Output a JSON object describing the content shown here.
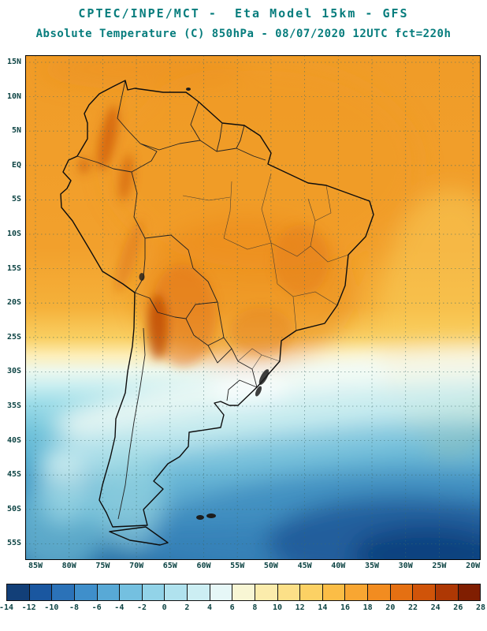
{
  "header": {
    "line1": "CPTEC/INPE/MCT -  Eta Model 15km - GFS",
    "line2": "Absolute Temperature (C) 850hPa - 08/07/2020 12UTC fct=220h"
  },
  "map": {
    "lat_labels": [
      "15N",
      "10N",
      "5N",
      "EQ",
      "5S",
      "10S",
      "15S",
      "20S",
      "25S",
      "30S",
      "35S",
      "40S",
      "45S",
      "50S",
      "55S"
    ],
    "lon_labels": [
      "85W",
      "80W",
      "75W",
      "70W",
      "65W",
      "60W",
      "55W",
      "50W",
      "45W",
      "40W",
      "35W",
      "30W",
      "25W",
      "20W"
    ]
  },
  "colorbar": {
    "tick_labels": [
      "-14",
      "-12",
      "-10",
      "-8",
      "-6",
      "-4",
      "-2",
      "0",
      "2",
      "4",
      "6",
      "8",
      "10",
      "12",
      "14",
      "16",
      "18",
      "20",
      "22",
      "24",
      "26",
      "28"
    ],
    "segment_colors": [
      "#123f78",
      "#1a57a0",
      "#2b72b8",
      "#3f8fcb",
      "#58a9d6",
      "#74c0e0",
      "#92d3e8",
      "#b0e2ee",
      "#cceef3",
      "#e6f7f7",
      "#f8f6d4",
      "#fbecac",
      "#fce088",
      "#fcd164",
      "#fbbd46",
      "#f8a632",
      "#f28c20",
      "#e57012",
      "#d05409",
      "#ae3804",
      "#801e01"
    ]
  },
  "colors": {
    "title": "#077d7d",
    "tick": "#0d4444"
  }
}
